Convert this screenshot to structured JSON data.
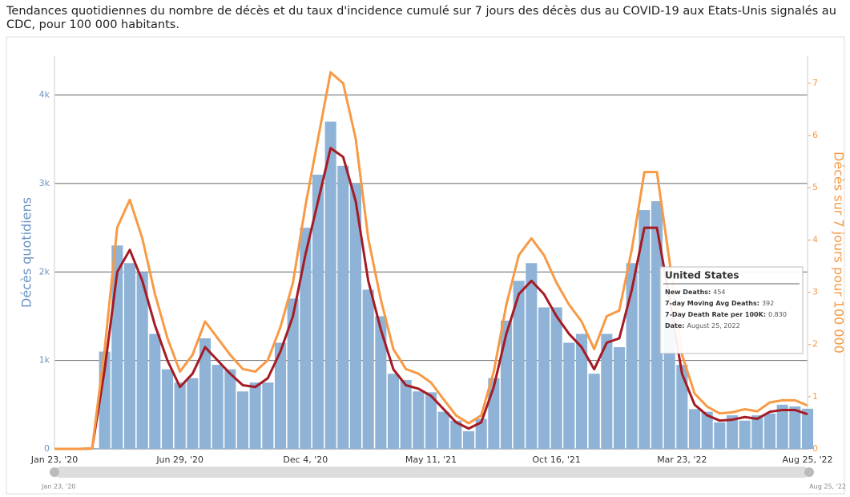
{
  "chart_data": {
    "type": "bar_line",
    "title": "Tendances quotidiennes du nombre de décès et du taux d'incidence cumulé sur 7 jours des décès dus au COVID-19 aux États-Unis signalés au CDC, pour 100 000 habitants.",
    "ylabel": "Décès quotidiens",
    "y2label": "Décès sur 7 jours pour 100 000",
    "categories": [
      "Jan 23, '20",
      null,
      null,
      null,
      null,
      null,
      null,
      null,
      null,
      null,
      "Jun 29, '20",
      null,
      null,
      null,
      null,
      null,
      null,
      null,
      null,
      null,
      "Dec 4, '20",
      null,
      null,
      null,
      null,
      null,
      null,
      null,
      null,
      null,
      "May 11, '21",
      null,
      null,
      null,
      null,
      null,
      null,
      null,
      null,
      null,
      "Oct 16, '21",
      null,
      null,
      null,
      null,
      null,
      null,
      null,
      null,
      null,
      "Mar 23, '22",
      null,
      null,
      null,
      null,
      null,
      null,
      null,
      null,
      null,
      "Aug 25, '22"
    ],
    "series": [
      {
        "name": "New Deaths",
        "kind": "bar",
        "color": "#8fb3d6",
        "values": [
          0,
          0,
          0,
          10,
          1100,
          2300,
          2100,
          2000,
          1300,
          900,
          750,
          800,
          1250,
          950,
          900,
          650,
          750,
          750,
          1200,
          1700,
          2500,
          3100,
          3700,
          3200,
          3000,
          1800,
          1500,
          850,
          780,
          650,
          640,
          420,
          320,
          200,
          340,
          800,
          1450,
          1900,
          2100,
          1600,
          1600,
          1200,
          1300,
          850,
          1300,
          1150,
          2100,
          2700,
          2800,
          1500,
          950,
          450,
          420,
          300,
          380,
          320,
          380,
          400,
          500,
          480,
          454
        ]
      },
      {
        "name": "7-day Moving Avg Deaths",
        "kind": "line",
        "color": "#a51b24",
        "values": [
          0,
          0,
          0,
          5,
          900,
          2000,
          2250,
          1900,
          1400,
          1000,
          700,
          850,
          1150,
          1000,
          850,
          720,
          700,
          800,
          1100,
          1500,
          2200,
          2800,
          3400,
          3300,
          2800,
          1900,
          1350,
          900,
          720,
          680,
          600,
          450,
          300,
          230,
          300,
          700,
          1300,
          1750,
          1900,
          1750,
          1500,
          1300,
          1150,
          900,
          1200,
          1250,
          1800,
          2500,
          2500,
          1700,
          850,
          500,
          380,
          320,
          330,
          360,
          340,
          420,
          440,
          440,
          392
        ]
      },
      {
        "name": "7-Day Death Rate per 100K",
        "kind": "line",
        "axis": "y2",
        "color": "#f79a45",
        "values": [
          0,
          0,
          0,
          0.01,
          1.91,
          4.24,
          4.77,
          4.03,
          2.97,
          2.12,
          1.48,
          1.8,
          2.44,
          2.12,
          1.8,
          1.53,
          1.48,
          1.7,
          2.33,
          3.18,
          4.66,
          5.94,
          7.21,
          7.0,
          5.94,
          4.03,
          2.86,
          1.91,
          1.53,
          1.44,
          1.27,
          0.95,
          0.64,
          0.49,
          0.64,
          1.48,
          2.76,
          3.71,
          4.03,
          3.71,
          3.18,
          2.76,
          2.44,
          1.91,
          2.54,
          2.65,
          3.82,
          5.3,
          5.3,
          3.6,
          1.8,
          1.06,
          0.81,
          0.68,
          0.7,
          0.76,
          0.72,
          0.89,
          0.93,
          0.93,
          0.83
        ]
      }
    ],
    "ylim": [
      0,
      4440
    ],
    "yticks": [
      0,
      {
        "value": 1000,
        "label": "1k"
      },
      {
        "value": 2000,
        "label": "2k"
      },
      {
        "value": 3000,
        "label": "3k"
      },
      {
        "value": 4000,
        "label": "4k"
      }
    ],
    "y2lim": [
      0,
      7.52
    ],
    "y2ticks": [
      0,
      1,
      2,
      3,
      4,
      5,
      6,
      7
    ],
    "grid": true,
    "tooltip": {
      "title": "United States",
      "rows": [
        {
          "label": "New Deaths:",
          "value": "454"
        },
        {
          "label": "7-day Moving Avg Deaths:",
          "value": "392"
        },
        {
          "label": "7-Day Death Rate per 100K:",
          "value": "0.830"
        },
        {
          "label": "Date:",
          "value": "August 25, 2022"
        }
      ]
    },
    "range_start": "Jan 23, '20",
    "range_end": "Aug 25, '22"
  }
}
